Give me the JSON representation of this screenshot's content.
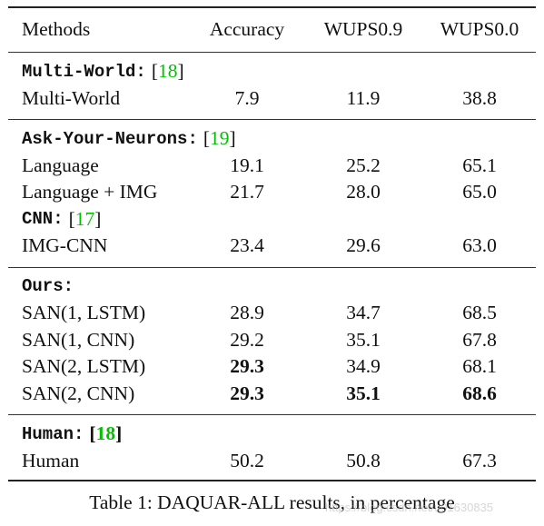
{
  "columns": [
    "Methods",
    "Accuracy",
    "WUPS0.9",
    "WUPS0.0"
  ],
  "sections": [
    {
      "groups": [
        {
          "title": "Multi-World",
          "title_suffix": ":",
          "ref_open": "[",
          "ref": "18",
          "ref_close": "]",
          "rows": [
            {
              "method": "Multi-World",
              "values": [
                "7.9",
                "11.9",
                "38.8"
              ],
              "bold": [
                false,
                false,
                false
              ]
            }
          ]
        }
      ]
    },
    {
      "groups": [
        {
          "title": "Ask-Your-Neurons",
          "title_suffix": ":",
          "ref_open": "[",
          "ref": "19",
          "ref_close": "]",
          "rows": [
            {
              "method": "Language",
              "values": [
                "19.1",
                "25.2",
                "65.1"
              ],
              "bold": [
                false,
                false,
                false
              ]
            },
            {
              "method": "Language + IMG",
              "values": [
                "21.7",
                "28.0",
                "65.0"
              ],
              "bold": [
                false,
                false,
                false
              ]
            }
          ]
        },
        {
          "title": "CNN",
          "title_suffix": ":",
          "ref_open": "[",
          "ref": "17",
          "ref_close": "]",
          "rows": [
            {
              "method": "IMG-CNN",
              "values": [
                "23.4",
                "29.6",
                "63.0"
              ],
              "bold": [
                false,
                false,
                false
              ]
            }
          ]
        }
      ]
    },
    {
      "groups": [
        {
          "title": "Ours",
          "title_suffix": ":",
          "ref_open": "",
          "ref": "",
          "ref_close": "",
          "rows": [
            {
              "method": "SAN(1, LSTM)",
              "values": [
                "28.9",
                "34.7",
                "68.5"
              ],
              "bold": [
                false,
                false,
                false
              ]
            },
            {
              "method": "SAN(1, CNN)",
              "values": [
                "29.2",
                "35.1",
                "67.8"
              ],
              "bold": [
                false,
                false,
                false
              ]
            },
            {
              "method": "SAN(2, LSTM)",
              "values": [
                "29.3",
                "34.9",
                "68.1"
              ],
              "bold": [
                true,
                false,
                false
              ]
            },
            {
              "method": "SAN(2, CNN)",
              "values": [
                "29.3",
                "35.1",
                "68.6"
              ],
              "bold": [
                true,
                true,
                true
              ]
            }
          ]
        }
      ]
    },
    {
      "groups": [
        {
          "title": "Human",
          "title_suffix": " :",
          "ref_open": "[",
          "ref": "18",
          "ref_close": "]",
          "ref_bold": true,
          "rows": [
            {
              "method": "Human",
              "values": [
                "50.2",
                "50.8",
                "67.3"
              ],
              "bold": [
                false,
                false,
                false
              ]
            }
          ]
        }
      ]
    }
  ],
  "caption": "Table 1: DAQUAR-ALL results, in percentage",
  "watermark": "https://blog.csdn.net/u01630835",
  "colors": {
    "ref": "#00c000",
    "rule": "#222222"
  }
}
